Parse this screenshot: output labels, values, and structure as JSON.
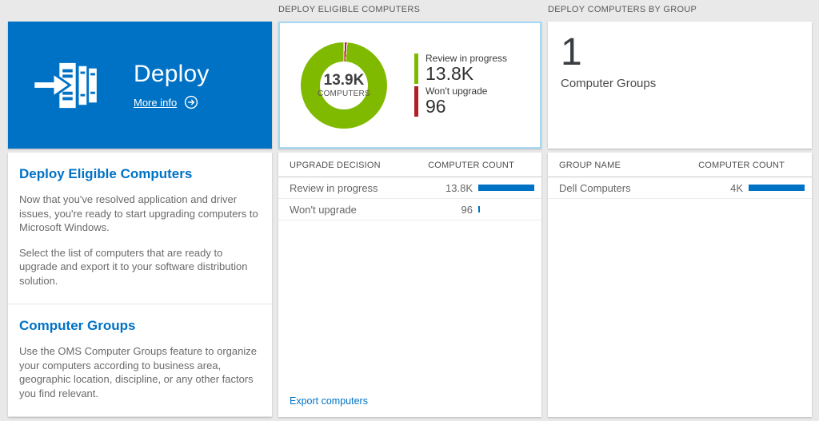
{
  "colors": {
    "background": "#e9e9e9",
    "brand_blue": "#0072c6",
    "selected_border": "#a3d9f5",
    "green": "#7fba00",
    "red": "#b01e28",
    "bar_blue": "#0072c6"
  },
  "left_column": {
    "tile": {
      "title": "Deploy",
      "link": "More info"
    },
    "sections": [
      {
        "heading": "Deploy Eligible Computers",
        "para1": "Now that you've resolved application and driver issues, you're ready to start upgrading computers to Microsoft Windows.",
        "para2": "Select the list of computers that are ready to upgrade and export it to your software distribution solution."
      },
      {
        "heading": "Computer Groups",
        "para1": "Use the OMS Computer Groups feature to organize your computers according to business area, geographic location, discipline, or any other factors you find relevant."
      }
    ]
  },
  "middle_column": {
    "header": "DEPLOY ELIGIBLE COMPUTERS",
    "donut": {
      "center_value": "13.9K",
      "center_label": "COMPUTERS",
      "legend": [
        {
          "label": "Review in progress",
          "display": "13.8K",
          "value": 13800,
          "color": "#7fba00"
        },
        {
          "label": "Won't upgrade",
          "display": "96",
          "value": 96,
          "color": "#b01e28"
        }
      ]
    },
    "table": {
      "col1": "UPGRADE DECISION",
      "col2": "COMPUTER COUNT",
      "rows": [
        {
          "label": "Review in progress",
          "display": "13.8K",
          "value": 13800,
          "bar_percent": 100
        },
        {
          "label": "Won't upgrade",
          "display": "96",
          "value": 96,
          "bar_percent": 1
        }
      ]
    },
    "footer_link": "Export computers"
  },
  "right_column": {
    "header": "DEPLOY COMPUTERS BY GROUP",
    "tile": {
      "count": "1",
      "label": "Computer Groups"
    },
    "table": {
      "col1": "GROUP NAME",
      "col2": "COMPUTER COUNT",
      "rows": [
        {
          "label": "Dell Computers",
          "display": "4K",
          "value": 4000,
          "bar_percent": 100
        }
      ]
    }
  },
  "chart_data": [
    {
      "type": "pie",
      "title": "Deploy eligible computers donut",
      "center_value": "13.9K",
      "center_label": "COMPUTERS",
      "labels": [
        "Review in progress",
        "Won't upgrade"
      ],
      "values": [
        13800,
        96
      ],
      "colors": [
        "#7fba00",
        "#b01e28"
      ],
      "legend_position": "right"
    },
    {
      "type": "table",
      "title": "Upgrade decision counts",
      "columns": [
        "UPGRADE DECISION",
        "COMPUTER COUNT"
      ],
      "rows": [
        [
          "Review in progress",
          "13.8K"
        ],
        [
          "Won't upgrade",
          "96"
        ]
      ]
    },
    {
      "type": "table",
      "title": "Computers by group",
      "columns": [
        "GROUP NAME",
        "COMPUTER COUNT"
      ],
      "rows": [
        [
          "Dell Computers",
          "4K"
        ]
      ]
    }
  ]
}
